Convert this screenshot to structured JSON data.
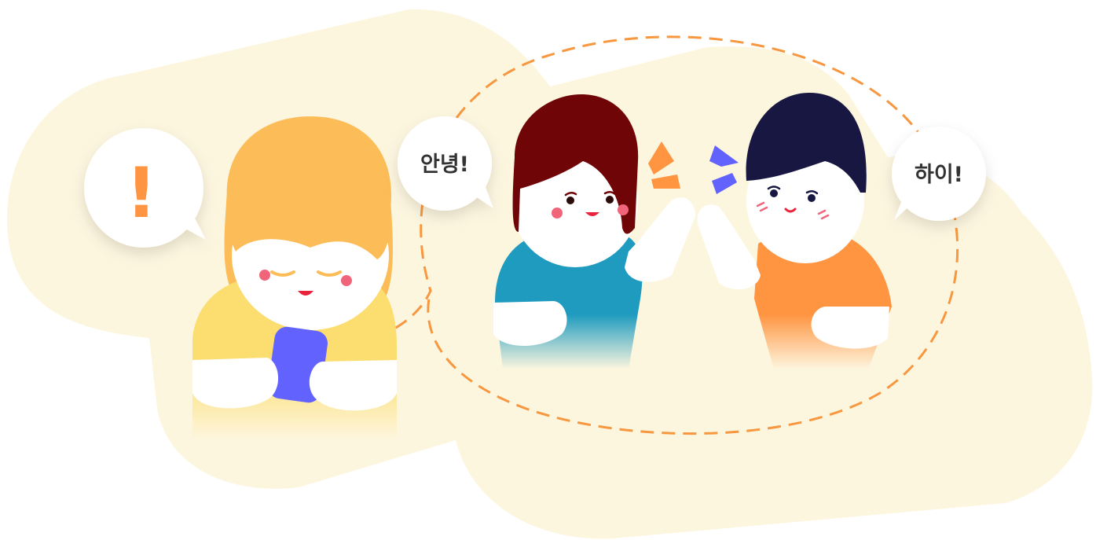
{
  "illustration": {
    "bubbles": {
      "exclaim": "!",
      "hello_left": "안녕!",
      "hello_right": "하이!"
    },
    "colors": {
      "background_blob": "#FDF6DF",
      "dashed_circle": "#F7973F",
      "girl_hair": "#FCBD58",
      "girl_shirt": "#FCDE70",
      "phone": "#6262FF",
      "woman_hair": "#6F0507",
      "woman_shirt": "#1E9BBF",
      "man_hair": "#171742",
      "man_shirt": "#FF9441",
      "cheeks": "#F1657B",
      "exclaim": "#FF9441"
    }
  }
}
